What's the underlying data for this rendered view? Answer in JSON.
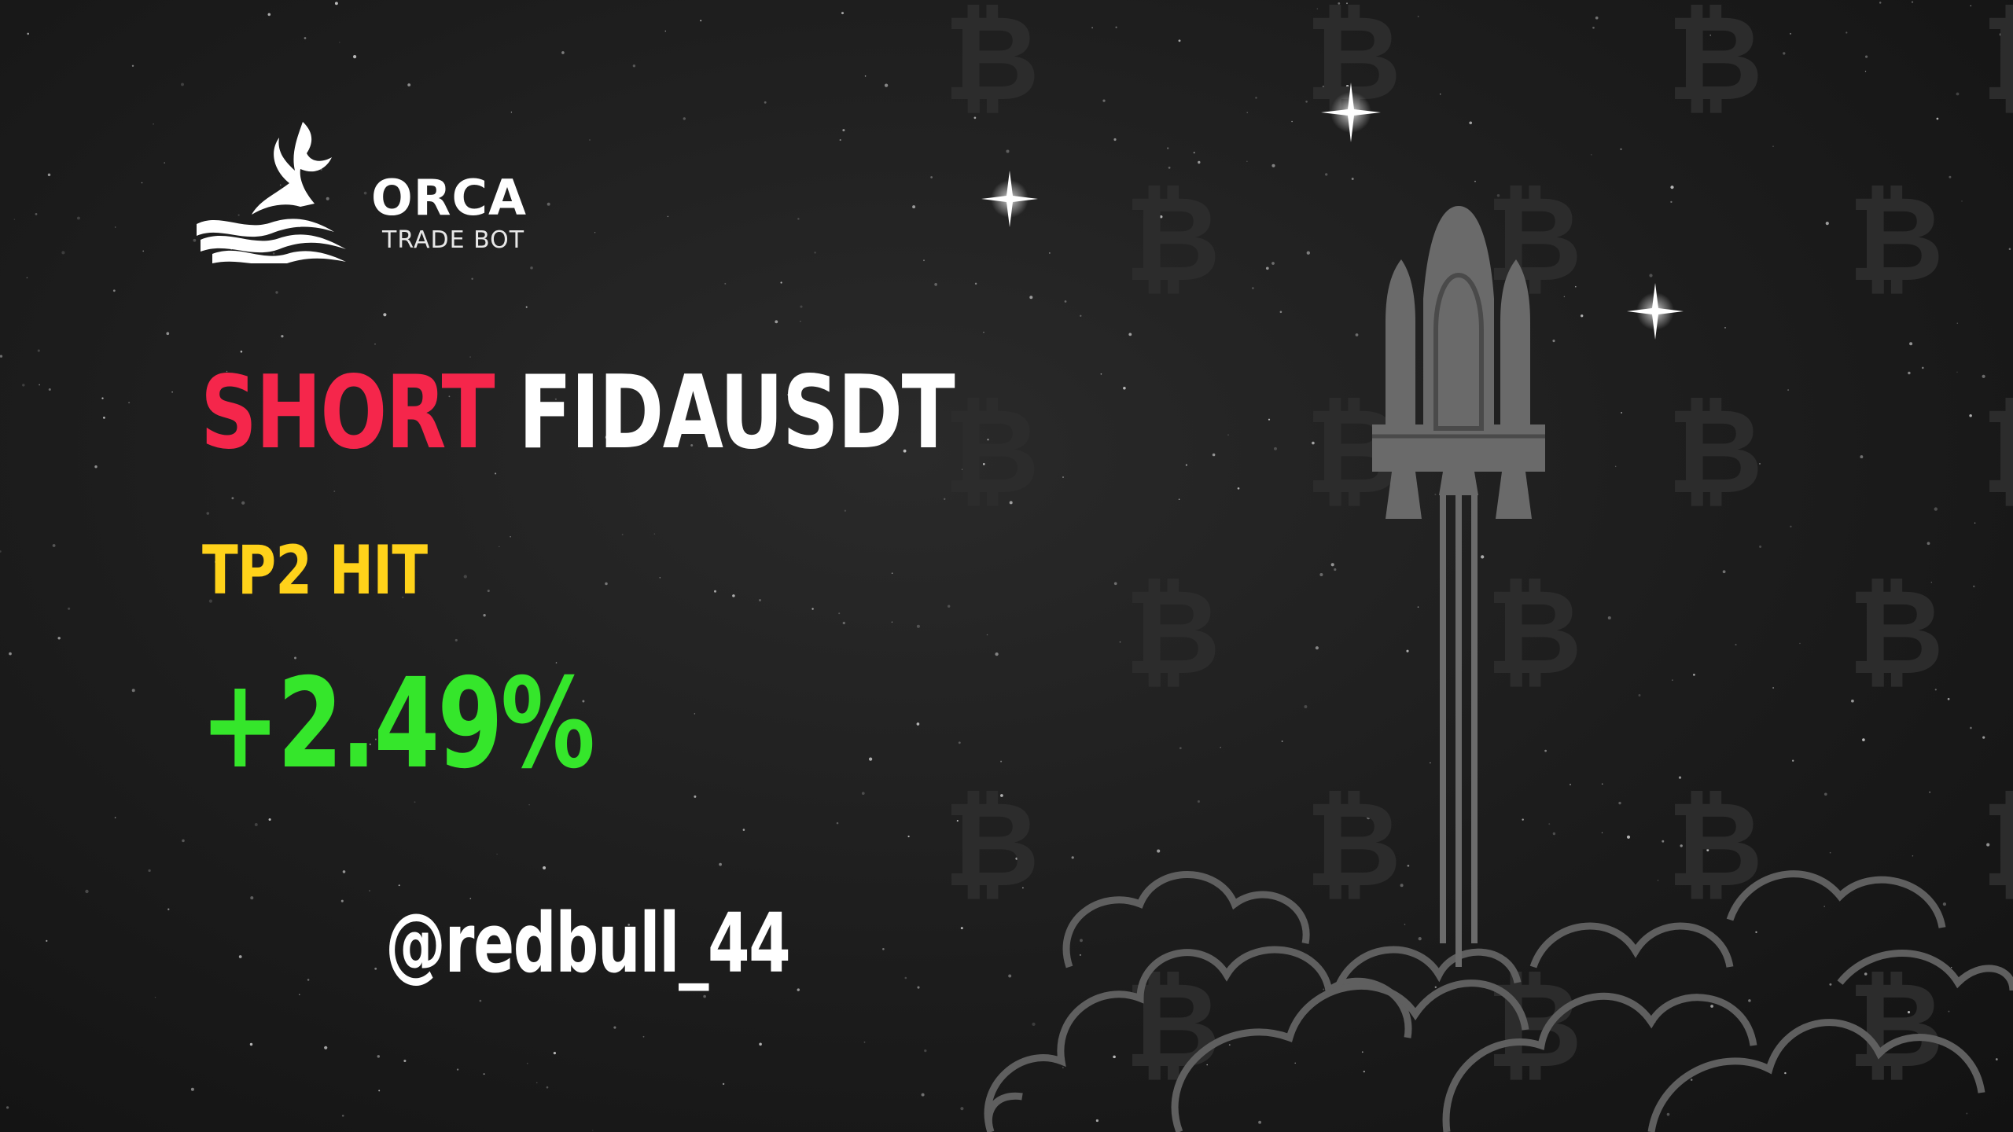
{
  "brand": {
    "name": "ORCA",
    "tagline": "TRADE BOT",
    "logo_icon": "whale-tail-icon"
  },
  "signal": {
    "direction": "SHORT",
    "pair": "FIDAUSDT",
    "status": "TP2 HIT",
    "profit": "+2.49%",
    "author": "@redbull_44"
  },
  "colors": {
    "direction": "#f5264b",
    "pair": "#ffffff",
    "status": "#ffd21a",
    "profit": "#35e62b",
    "background": "#1c1c1c",
    "art": "#5a5a5a"
  },
  "decor": {
    "pattern_symbol": "₿",
    "illustration": "rocket-launch-icon"
  }
}
